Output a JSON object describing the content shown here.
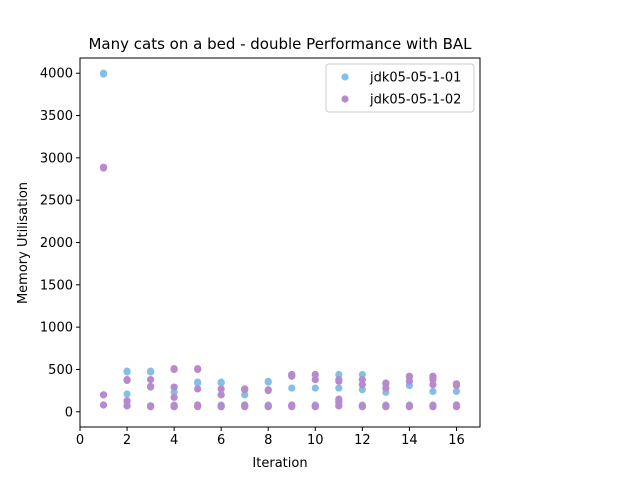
{
  "chart_data": {
    "type": "scatter",
    "title": "Many cats on a bed - double Performance with BAL",
    "xlabel": "Iteration",
    "ylabel": "Memory Utilisation",
    "xlim": [
      0,
      17
    ],
    "ylim": [
      -180,
      4180
    ],
    "xticks": [
      0,
      2,
      4,
      6,
      8,
      10,
      12,
      14,
      16
    ],
    "yticks": [
      0,
      500,
      1000,
      1500,
      2000,
      2500,
      3000,
      3500,
      4000
    ],
    "grid": false,
    "legend_position": "top-right",
    "series": [
      {
        "name": "jdk05-05-1-01",
        "color": "#85bfe8",
        "points": [
          [
            1,
            4000
          ],
          [
            1,
            3990
          ],
          [
            1,
            200
          ],
          [
            1,
            80
          ],
          [
            2,
            480
          ],
          [
            2,
            470
          ],
          [
            2,
            210
          ],
          [
            2,
            120
          ],
          [
            2,
            70
          ],
          [
            3,
            480
          ],
          [
            3,
            470
          ],
          [
            3,
            290
          ],
          [
            3,
            70
          ],
          [
            3,
            60
          ],
          [
            4,
            290
          ],
          [
            4,
            230
          ],
          [
            4,
            80
          ],
          [
            4,
            60
          ],
          [
            5,
            350
          ],
          [
            5,
            340
          ],
          [
            5,
            80
          ],
          [
            5,
            70
          ],
          [
            6,
            350
          ],
          [
            6,
            340
          ],
          [
            6,
            80
          ],
          [
            6,
            60
          ],
          [
            7,
            270
          ],
          [
            7,
            200
          ],
          [
            7,
            80
          ],
          [
            7,
            70
          ],
          [
            8,
            360
          ],
          [
            8,
            350
          ],
          [
            8,
            80
          ],
          [
            8,
            60
          ],
          [
            9,
            440
          ],
          [
            9,
            280
          ],
          [
            9,
            80
          ],
          [
            9,
            70
          ],
          [
            10,
            440
          ],
          [
            10,
            280
          ],
          [
            10,
            80
          ],
          [
            10,
            60
          ],
          [
            11,
            440
          ],
          [
            11,
            280
          ],
          [
            11,
            130
          ],
          [
            11,
            70
          ],
          [
            12,
            440
          ],
          [
            12,
            260
          ],
          [
            12,
            80
          ],
          [
            12,
            60
          ],
          [
            13,
            330
          ],
          [
            13,
            230
          ],
          [
            13,
            80
          ],
          [
            13,
            60
          ],
          [
            14,
            410
          ],
          [
            14,
            310
          ],
          [
            14,
            80
          ],
          [
            14,
            60
          ],
          [
            15,
            410
          ],
          [
            15,
            240
          ],
          [
            15,
            80
          ],
          [
            15,
            60
          ],
          [
            16,
            330
          ],
          [
            16,
            240
          ],
          [
            16,
            80
          ],
          [
            16,
            60
          ]
        ]
      },
      {
        "name": "jdk05-05-1-02",
        "color": "#b88acb",
        "points": [
          [
            1,
            2890
          ],
          [
            1,
            2880
          ],
          [
            1,
            200
          ],
          [
            1,
            80
          ],
          [
            2,
            380
          ],
          [
            2,
            370
          ],
          [
            2,
            130
          ],
          [
            2,
            70
          ],
          [
            3,
            380
          ],
          [
            3,
            300
          ],
          [
            3,
            70
          ],
          [
            3,
            60
          ],
          [
            4,
            510
          ],
          [
            4,
            500
          ],
          [
            4,
            290
          ],
          [
            4,
            170
          ],
          [
            4,
            70
          ],
          [
            4,
            60
          ],
          [
            5,
            510
          ],
          [
            5,
            500
          ],
          [
            5,
            270
          ],
          [
            5,
            80
          ],
          [
            5,
            60
          ],
          [
            6,
            270
          ],
          [
            6,
            200
          ],
          [
            6,
            70
          ],
          [
            6,
            60
          ],
          [
            7,
            270
          ],
          [
            7,
            260
          ],
          [
            7,
            80
          ],
          [
            7,
            60
          ],
          [
            8,
            260
          ],
          [
            8,
            250
          ],
          [
            8,
            70
          ],
          [
            8,
            60
          ],
          [
            9,
            440
          ],
          [
            9,
            420
          ],
          [
            9,
            80
          ],
          [
            9,
            60
          ],
          [
            10,
            440
          ],
          [
            10,
            380
          ],
          [
            10,
            70
          ],
          [
            10,
            60
          ],
          [
            11,
            380
          ],
          [
            11,
            360
          ],
          [
            11,
            150
          ],
          [
            11,
            110
          ],
          [
            11,
            70
          ],
          [
            12,
            380
          ],
          [
            12,
            320
          ],
          [
            12,
            70
          ],
          [
            12,
            60
          ],
          [
            13,
            340
          ],
          [
            13,
            280
          ],
          [
            13,
            70
          ],
          [
            13,
            60
          ],
          [
            14,
            420
          ],
          [
            14,
            360
          ],
          [
            14,
            70
          ],
          [
            14,
            60
          ],
          [
            15,
            420
          ],
          [
            15,
            380
          ],
          [
            15,
            320
          ],
          [
            15,
            70
          ],
          [
            15,
            60
          ],
          [
            16,
            330
          ],
          [
            16,
            310
          ],
          [
            16,
            80
          ],
          [
            16,
            60
          ]
        ]
      }
    ]
  }
}
